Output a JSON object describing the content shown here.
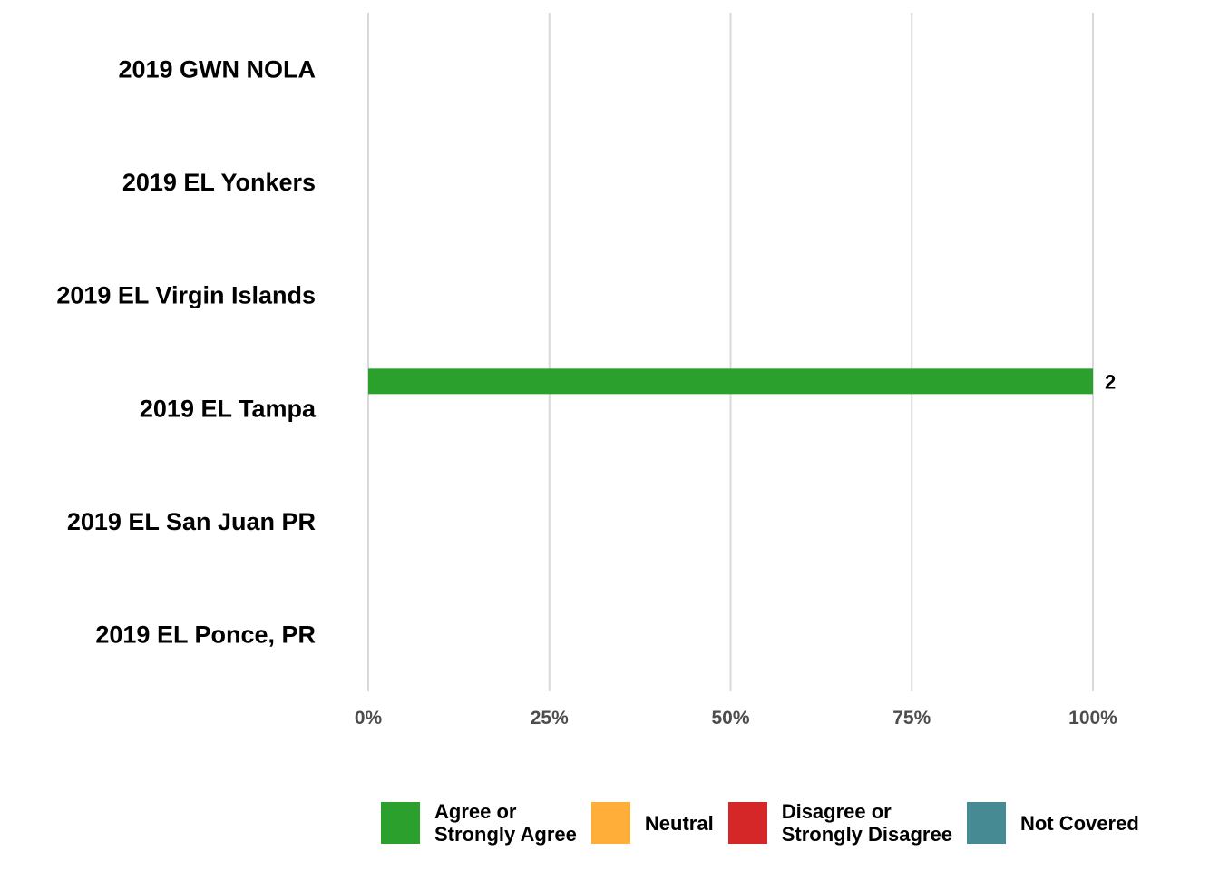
{
  "chart_data": {
    "type": "bar",
    "orientation": "horizontal",
    "stacked": true,
    "title": "",
    "xlabel": "",
    "ylabel": "",
    "categories": [
      "2019 GWN NOLA",
      "2019 EL Yonkers",
      "2019 EL Virgin Islands",
      "2019 EL Tampa",
      "2019 EL San Juan PR",
      "2019 EL Ponce, PR"
    ],
    "xlim": [
      0,
      1
    ],
    "xticks": [
      0,
      0.25,
      0.5,
      0.75,
      1
    ],
    "xtick_labels": [
      "0%",
      "25%",
      "50%",
      "75%",
      "100%"
    ],
    "grid": "vertical",
    "legend_position": "bottom",
    "series": [
      {
        "name": "Agree or\nStrongly Agree",
        "color": "#2ca02c",
        "values": [
          0,
          0,
          0,
          1,
          0,
          0
        ],
        "labels": [
          "",
          "",
          "",
          "2",
          "",
          ""
        ]
      },
      {
        "name": "Neutral",
        "color": "#ffae3a",
        "values": [
          0,
          0,
          0,
          0,
          0,
          0
        ],
        "labels": [
          "",
          "",
          "",
          "",
          "",
          ""
        ]
      },
      {
        "name": "Disagree or\nStrongly Disagree",
        "color": "#d62728",
        "values": [
          0,
          0,
          0,
          0,
          0,
          0
        ],
        "labels": [
          "",
          "",
          "",
          "",
          "",
          ""
        ]
      },
      {
        "name": "Not Covered",
        "color": "#468a93",
        "values": [
          0,
          0,
          0,
          0,
          0,
          0
        ],
        "labels": [
          "",
          "",
          "",
          "",
          "",
          ""
        ]
      }
    ]
  }
}
